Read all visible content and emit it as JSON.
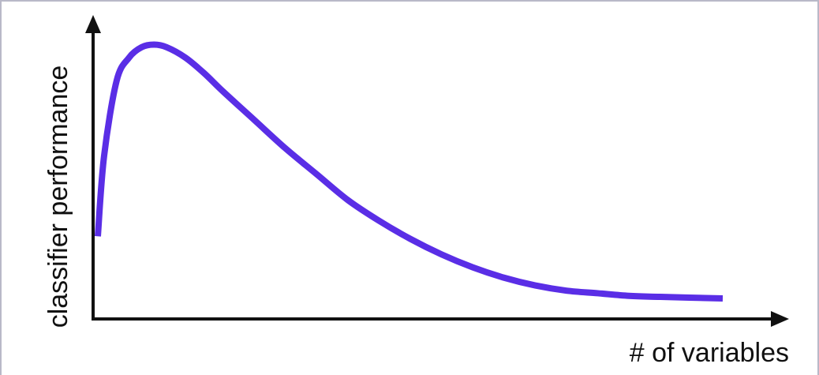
{
  "chart_data": {
    "type": "line",
    "title": "",
    "xlabel": "# of variables",
    "ylabel": "classifier performance",
    "grid": false,
    "legend": "none",
    "ticks": false,
    "xlim": [
      0,
      1
    ],
    "ylim": [
      0,
      1
    ],
    "series": [
      {
        "color": "#5a2ee6",
        "x": [
          0.0,
          0.01,
          0.03,
          0.05,
          0.07,
          0.09,
          0.11,
          0.14,
          0.17,
          0.2,
          0.25,
          0.3,
          0.35,
          0.4,
          0.45,
          0.5,
          0.55,
          0.6,
          0.65,
          0.7,
          0.75,
          0.8,
          0.85,
          0.9,
          1.0
        ],
        "y": [
          0.24,
          0.55,
          0.84,
          0.93,
          0.97,
          0.98,
          0.97,
          0.93,
          0.87,
          0.8,
          0.69,
          0.58,
          0.48,
          0.38,
          0.3,
          0.23,
          0.17,
          0.12,
          0.08,
          0.05,
          0.03,
          0.02,
          0.01,
          0.006,
          0.0
        ]
      }
    ]
  }
}
